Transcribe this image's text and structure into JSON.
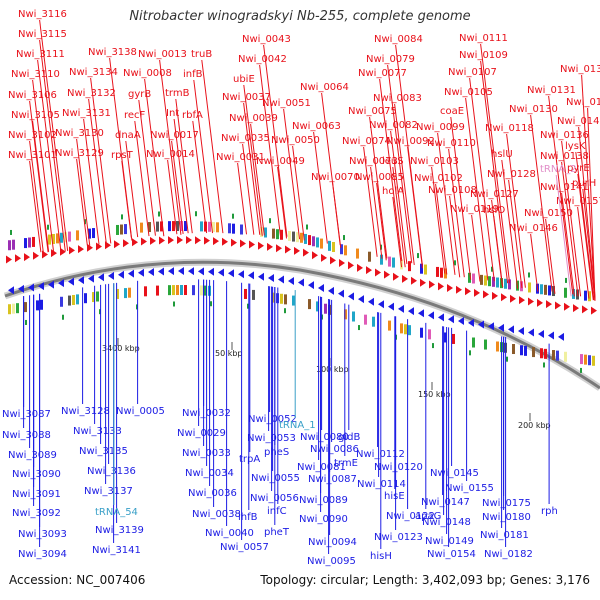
{
  "title": "Nitrobacter winogradskyi Nb-255, complete genome",
  "footer": {
    "accession": "Accession: NC_007406",
    "summary": "Topology: circular; Length: 3,402,093 bp; Genes: 3,176"
  },
  "colors": {
    "forward": "#e8111a",
    "reverse": "#1c1ce4",
    "rna": "#e18ec8",
    "trna_reverse": "#3aa0c8",
    "backbone": "#7a7a7a",
    "tick": "#1f9a3a"
  },
  "ticks": [
    "3400 kbp",
    "50 kbp",
    "100 kbp",
    "150 kbp",
    "200 kbp"
  ],
  "forward_labels": [
    "Nwi_3116",
    "Nwi_3115",
    "Nwi_3111",
    "Nwi_3110",
    "Nwi_3106",
    "Nwi_3105",
    "Nwi_3102",
    "Nwi_3101",
    "Nwi_3138",
    "Nwi_3134",
    "Nwi_3132",
    "Nwi_3131",
    "Nwi_3130",
    "Nwi_3129",
    "Nwi_0013",
    "Nwi_0008",
    "gyrB",
    "recF",
    "dnaA",
    "rpsT",
    "trmB",
    "Int",
    "Nwi_0017",
    "Nwi_0014",
    "truB",
    "infB",
    "rbfA",
    "Nwi_0043",
    "Nwi_0042",
    "ubiE",
    "Nwi_0037",
    "Nwi_0039",
    "Nwi_0035",
    "Nwi_0031",
    "Nwi_0051",
    "Nwi_0050",
    "Nwi_0049",
    "Nwi_0064",
    "Nwi_0063",
    "Nwi_0084",
    "Nwi_0079",
    "Nwi_0077",
    "Nwi_0083",
    "Nwi_0075",
    "Nwi_0082",
    "Nwi_0074",
    "Nwi_0073",
    "Nwi_0070",
    "Nwi_0092",
    "Nwi_0085",
    "leuS",
    "holA",
    "Nwi_0111",
    "Nwi_0109",
    "Nwi_0107",
    "Nwi_0105",
    "coaE",
    "Nwi_0099",
    "Nwi_0110",
    "Nwi_0102",
    "Nwi_0103",
    "Nwi_0108",
    "Nwi_0118",
    "Nwi_0119",
    "Nwi_0127",
    "Nwi_0128",
    "Nwi_0137",
    "Nwi_0131",
    "Nwi_0130",
    "Nwi_0144",
    "Nwi_0142",
    "Nwi_0136",
    "hslU",
    "Nwi_0138",
    "hslO",
    "Nwi_0141",
    "Nwi_0150",
    "Nwi_0146",
    "lysK",
    "pyrE",
    "purH",
    "Nwi_0157"
  ],
  "rna_labels": [
    "tRNA_2"
  ],
  "reverse_labels": [
    "Nwi_3087",
    "Nwi_3088",
    "Nwi_3089",
    "Nwi_3090",
    "Nwi_3091",
    "Nwi_3092",
    "Nwi_3093",
    "Nwi_3094",
    "Nwi_3128",
    "Nwi_3133",
    "Nwi_3135",
    "Nwi_3136",
    "Nwi_3137",
    "Nwi_3139",
    "Nwi_3141",
    "Nwi_0005",
    "Nwi_0032",
    "Nwi_0029",
    "Nwi_0033",
    "Nwi_0034",
    "Nwi_0036",
    "Nwi_0038",
    "Nwi_0040",
    "Nwi_0052",
    "Nwi_0053",
    "trpA",
    "Nwi_0055",
    "Nwi_0056",
    "ihfB",
    "Nwi_0057",
    "pheS",
    "pheT",
    "infC",
    "Nwi_0080",
    "Nwi_0081",
    "Nwi_0086",
    "Nwi_0087",
    "Nwi_0089",
    "Nwi_0090",
    "Nwi_0094",
    "Nwi_0095",
    "gidB",
    "trmE",
    "Nwi_0112",
    "Nwi_0114",
    "Nwi_0120",
    "hisE",
    "Nwi_0122",
    "Nwi_0123",
    "hisH",
    "Nwi_0145",
    "apaG",
    "Nwi_0155",
    "Nwi_0147",
    "Nwi_0148",
    "Nwi_0149",
    "Nwi_0154",
    "Nwi_0175",
    "Nwi_0180",
    "Nwi_0181",
    "Nwi_0182",
    "rph"
  ],
  "trna_reverse_labels": [
    "tRNA_1",
    "tRNA_54"
  ]
}
